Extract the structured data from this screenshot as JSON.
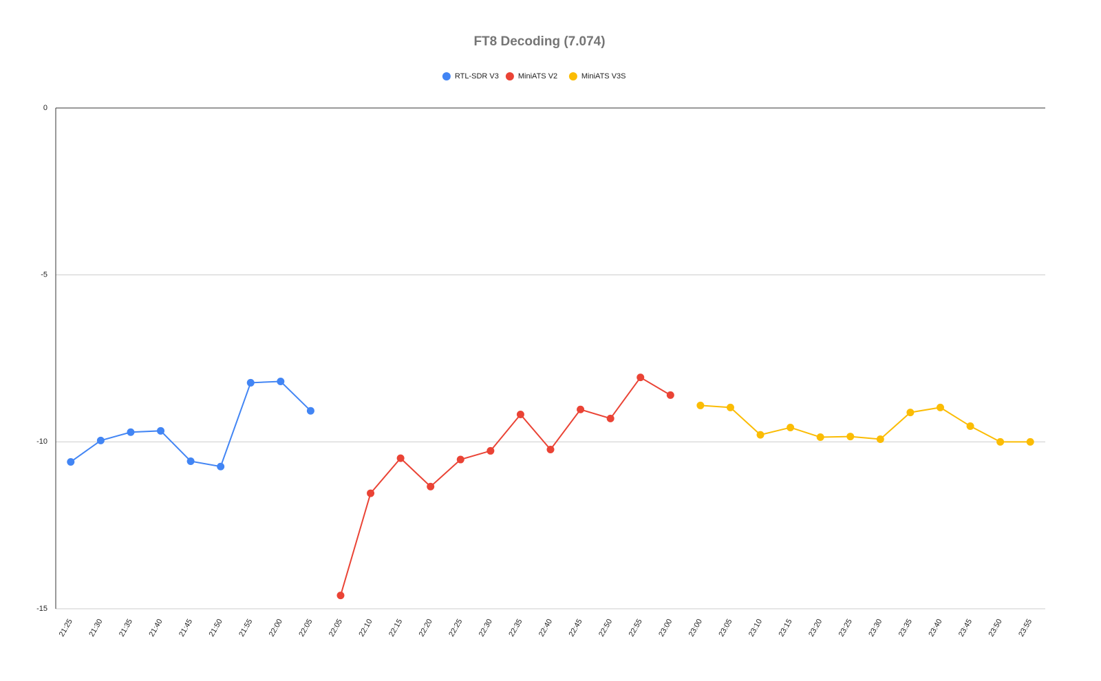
{
  "chart_data": {
    "type": "line",
    "title": "FT8 Decoding (7.074)",
    "categories": [
      "21:25",
      "21:30",
      "21:35",
      "21:40",
      "21:45",
      "21:50",
      "21:55",
      "22:00",
      "22:05",
      "22:05",
      "22:10",
      "22:15",
      "22:20",
      "22:25",
      "22:30",
      "22:35",
      "22:40",
      "22:45",
      "22:50",
      "22:55",
      "23:00",
      "23:00",
      "23:05",
      "23:10",
      "23:15",
      "23:20",
      "23:25",
      "23:30",
      "23:35",
      "23:40",
      "23:45",
      "23:50",
      "23:55"
    ],
    "series": [
      {
        "name": "RTL-SDR V3",
        "color": "#4285f4",
        "values": [
          -10.6,
          -9.96,
          -9.71,
          -9.67,
          -10.58,
          -10.74,
          -8.23,
          -8.19,
          -9.07,
          null,
          null,
          null,
          null,
          null,
          null,
          null,
          null,
          null,
          null,
          null,
          null,
          null,
          null,
          null,
          null,
          null,
          null,
          null,
          null,
          null,
          null,
          null,
          null
        ]
      },
      {
        "name": "MiniATS V2",
        "color": "#ea4335",
        "values": [
          null,
          null,
          null,
          null,
          null,
          null,
          null,
          null,
          null,
          -14.6,
          -11.54,
          -10.49,
          -11.34,
          -10.53,
          -10.27,
          -9.18,
          -10.23,
          -9.03,
          -9.3,
          -8.07,
          -8.6,
          null,
          null,
          null,
          null,
          null,
          null,
          null,
          null,
          null,
          null,
          null,
          null
        ]
      },
      {
        "name": "MiniATS V3S",
        "color": "#fbbc04",
        "values": [
          null,
          null,
          null,
          null,
          null,
          null,
          null,
          null,
          null,
          null,
          null,
          null,
          null,
          null,
          null,
          null,
          null,
          null,
          null,
          null,
          null,
          -8.91,
          -8.97,
          -9.79,
          -9.57,
          -9.86,
          -9.84,
          -9.92,
          -9.12,
          -8.97,
          -9.53,
          -10.0,
          -10.0
        ]
      }
    ],
    "ylim": [
      -15,
      0
    ],
    "yticks": [
      0,
      -5,
      -10,
      -15
    ],
    "grid": true,
    "legend": "top"
  }
}
